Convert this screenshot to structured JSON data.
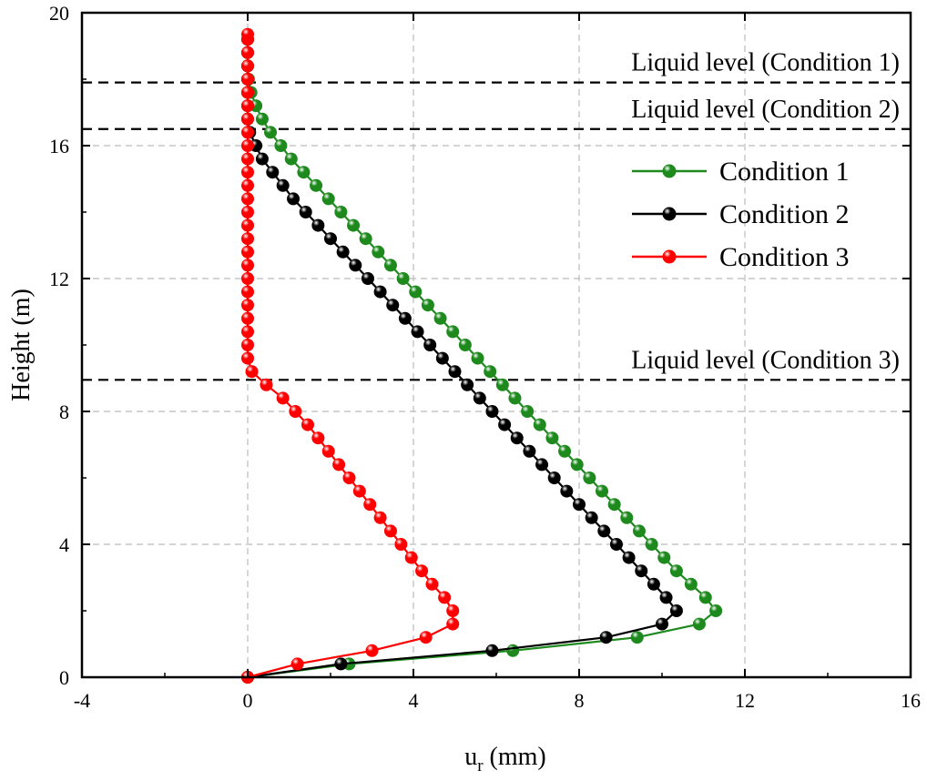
{
  "chart_data": {
    "type": "line",
    "title": "",
    "xlabel": "u",
    "xlabel_subscript": "r",
    "xlabel_units": "(mm)",
    "ylabel": "Height (m)",
    "xlim": [
      -4,
      16
    ],
    "ylim": [
      0,
      20
    ],
    "xticks": [
      -4,
      0,
      4,
      8,
      12,
      16
    ],
    "yticks": [
      0,
      4,
      8,
      12,
      16,
      20
    ],
    "grid": true,
    "legend_position": "top-right",
    "colors": {
      "condition1": "#1e8a1e",
      "condition2": "#000000",
      "condition3": "#ff0000",
      "grid": "#bbbbbb"
    },
    "reference_lines": [
      {
        "label": "Liquid level (Condition 1)",
        "y": 17.9
      },
      {
        "label": "Liquid level (Condition 2)",
        "y": 16.5
      },
      {
        "label": "Liquid level (Condition 3)",
        "y": 8.95
      }
    ],
    "series": [
      {
        "name": "Condition 1",
        "color": "#1e8a1e",
        "points": [
          [
            0,
            0
          ],
          [
            2.45,
            0.4
          ],
          [
            6.4,
            0.8
          ],
          [
            9.4,
            1.2
          ],
          [
            10.9,
            1.6
          ],
          [
            11.3,
            2.0
          ],
          [
            11.05,
            2.4
          ],
          [
            10.7,
            2.8
          ],
          [
            10.35,
            3.2
          ],
          [
            10.05,
            3.6
          ],
          [
            9.75,
            4.0
          ],
          [
            9.45,
            4.4
          ],
          [
            9.15,
            4.8
          ],
          [
            8.85,
            5.2
          ],
          [
            8.55,
            5.6
          ],
          [
            8.25,
            6.0
          ],
          [
            7.95,
            6.4
          ],
          [
            7.65,
            6.8
          ],
          [
            7.35,
            7.2
          ],
          [
            7.05,
            7.6
          ],
          [
            6.75,
            8.0
          ],
          [
            6.45,
            8.4
          ],
          [
            6.15,
            8.8
          ],
          [
            5.85,
            9.2
          ],
          [
            5.55,
            9.6
          ],
          [
            5.25,
            10.0
          ],
          [
            4.95,
            10.4
          ],
          [
            4.65,
            10.8
          ],
          [
            4.35,
            11.2
          ],
          [
            4.05,
            11.6
          ],
          [
            3.75,
            12.0
          ],
          [
            3.45,
            12.4
          ],
          [
            3.15,
            12.8
          ],
          [
            2.85,
            13.2
          ],
          [
            2.55,
            13.6
          ],
          [
            2.25,
            14.0
          ],
          [
            1.95,
            14.4
          ],
          [
            1.65,
            14.8
          ],
          [
            1.35,
            15.2
          ],
          [
            1.05,
            15.6
          ],
          [
            0.8,
            16.0
          ],
          [
            0.55,
            16.4
          ],
          [
            0.35,
            16.8
          ],
          [
            0.2,
            17.2
          ],
          [
            0.08,
            17.6
          ],
          [
            0.02,
            18.0
          ],
          [
            0,
            18.4
          ],
          [
            0,
            18.8
          ],
          [
            0,
            19.2
          ]
        ]
      },
      {
        "name": "Condition 2",
        "color": "#000000",
        "points": [
          [
            0,
            0
          ],
          [
            2.25,
            0.4
          ],
          [
            5.9,
            0.8
          ],
          [
            8.65,
            1.2
          ],
          [
            10.0,
            1.6
          ],
          [
            10.35,
            2.0
          ],
          [
            10.1,
            2.4
          ],
          [
            9.8,
            2.8
          ],
          [
            9.5,
            3.2
          ],
          [
            9.2,
            3.6
          ],
          [
            8.9,
            4.0
          ],
          [
            8.6,
            4.4
          ],
          [
            8.3,
            4.8
          ],
          [
            8.0,
            5.2
          ],
          [
            7.7,
            5.6
          ],
          [
            7.4,
            6.0
          ],
          [
            7.1,
            6.4
          ],
          [
            6.8,
            6.8
          ],
          [
            6.5,
            7.2
          ],
          [
            6.2,
            7.6
          ],
          [
            5.9,
            8.0
          ],
          [
            5.6,
            8.4
          ],
          [
            5.3,
            8.8
          ],
          [
            5.0,
            9.2
          ],
          [
            4.7,
            9.6
          ],
          [
            4.4,
            10.0
          ],
          [
            4.1,
            10.4
          ],
          [
            3.8,
            10.8
          ],
          [
            3.5,
            11.2
          ],
          [
            3.2,
            11.6
          ],
          [
            2.9,
            12.0
          ],
          [
            2.6,
            12.4
          ],
          [
            2.3,
            12.8
          ],
          [
            2.0,
            13.2
          ],
          [
            1.7,
            13.6
          ],
          [
            1.4,
            14.0
          ],
          [
            1.1,
            14.4
          ],
          [
            0.85,
            14.8
          ],
          [
            0.6,
            15.2
          ],
          [
            0.35,
            15.6
          ],
          [
            0.2,
            16.0
          ],
          [
            0.05,
            16.4
          ],
          [
            0,
            16.8
          ],
          [
            0,
            17.2
          ],
          [
            0,
            17.6
          ],
          [
            0,
            18.0
          ],
          [
            0,
            18.4
          ],
          [
            0,
            18.8
          ],
          [
            0,
            19.2
          ]
        ]
      },
      {
        "name": "Condition 3",
        "color": "#ff0000",
        "points": [
          [
            0,
            0
          ],
          [
            1.2,
            0.4
          ],
          [
            3.0,
            0.8
          ],
          [
            4.3,
            1.2
          ],
          [
            4.95,
            1.6
          ],
          [
            4.95,
            2.0
          ],
          [
            4.75,
            2.4
          ],
          [
            4.45,
            2.8
          ],
          [
            4.2,
            3.2
          ],
          [
            3.95,
            3.6
          ],
          [
            3.7,
            4.0
          ],
          [
            3.45,
            4.4
          ],
          [
            3.2,
            4.8
          ],
          [
            2.95,
            5.2
          ],
          [
            2.7,
            5.6
          ],
          [
            2.45,
            6.0
          ],
          [
            2.2,
            6.4
          ],
          [
            1.95,
            6.8
          ],
          [
            1.7,
            7.2
          ],
          [
            1.45,
            7.6
          ],
          [
            1.15,
            8.0
          ],
          [
            0.85,
            8.4
          ],
          [
            0.45,
            8.8
          ],
          [
            0.1,
            9.2
          ],
          [
            0,
            9.6
          ],
          [
            0,
            10.0
          ],
          [
            0,
            10.4
          ],
          [
            0,
            10.8
          ],
          [
            0,
            11.2
          ],
          [
            0,
            11.6
          ],
          [
            0,
            12.0
          ],
          [
            0,
            12.4
          ],
          [
            0,
            12.8
          ],
          [
            0,
            13.2
          ],
          [
            0,
            13.6
          ],
          [
            0,
            14.0
          ],
          [
            0,
            14.4
          ],
          [
            0,
            14.8
          ],
          [
            0,
            15.2
          ],
          [
            0,
            15.6
          ],
          [
            0,
            16.0
          ],
          [
            0,
            16.4
          ],
          [
            0,
            16.8
          ],
          [
            0,
            17.2
          ],
          [
            0,
            17.6
          ],
          [
            0,
            18.0
          ],
          [
            0,
            18.4
          ],
          [
            0,
            18.8
          ],
          [
            0,
            19.2
          ],
          [
            0,
            19.35
          ]
        ]
      }
    ]
  }
}
